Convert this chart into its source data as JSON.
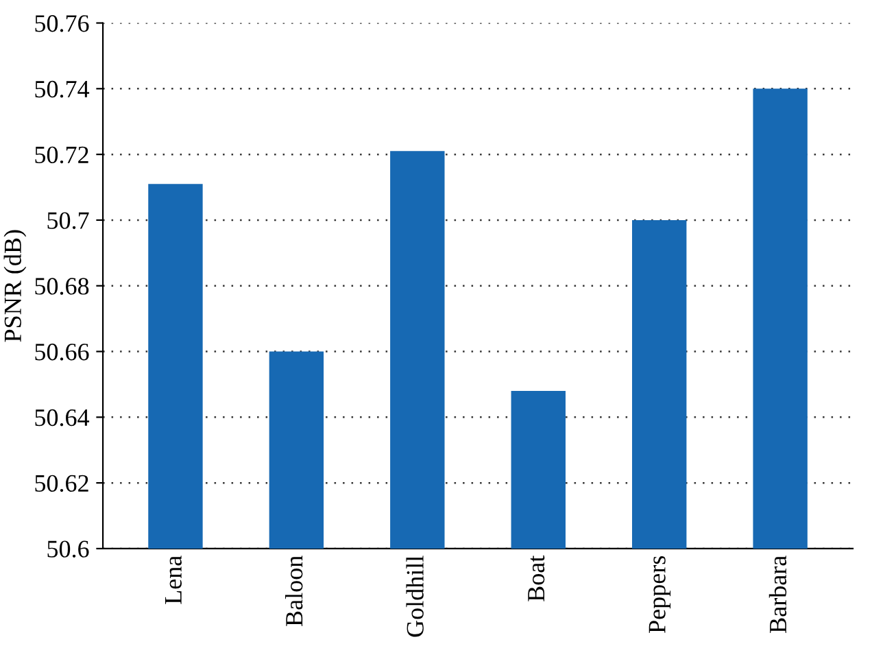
{
  "chart_data": {
    "type": "bar",
    "ylabel": "PSNR (dB)",
    "categories": [
      "Lena",
      "Baloon",
      "Goldhill",
      "Boat",
      "Peppers",
      "Barbara"
    ],
    "values": [
      50.711,
      50.66,
      50.721,
      50.648,
      50.7,
      50.74
    ],
    "color": "#1769b3",
    "ylim": [
      50.6,
      50.76
    ],
    "yticks": [
      50.6,
      50.62,
      50.64,
      50.66,
      50.68,
      50.7,
      50.72,
      50.74,
      50.76
    ],
    "grid": "y"
  }
}
